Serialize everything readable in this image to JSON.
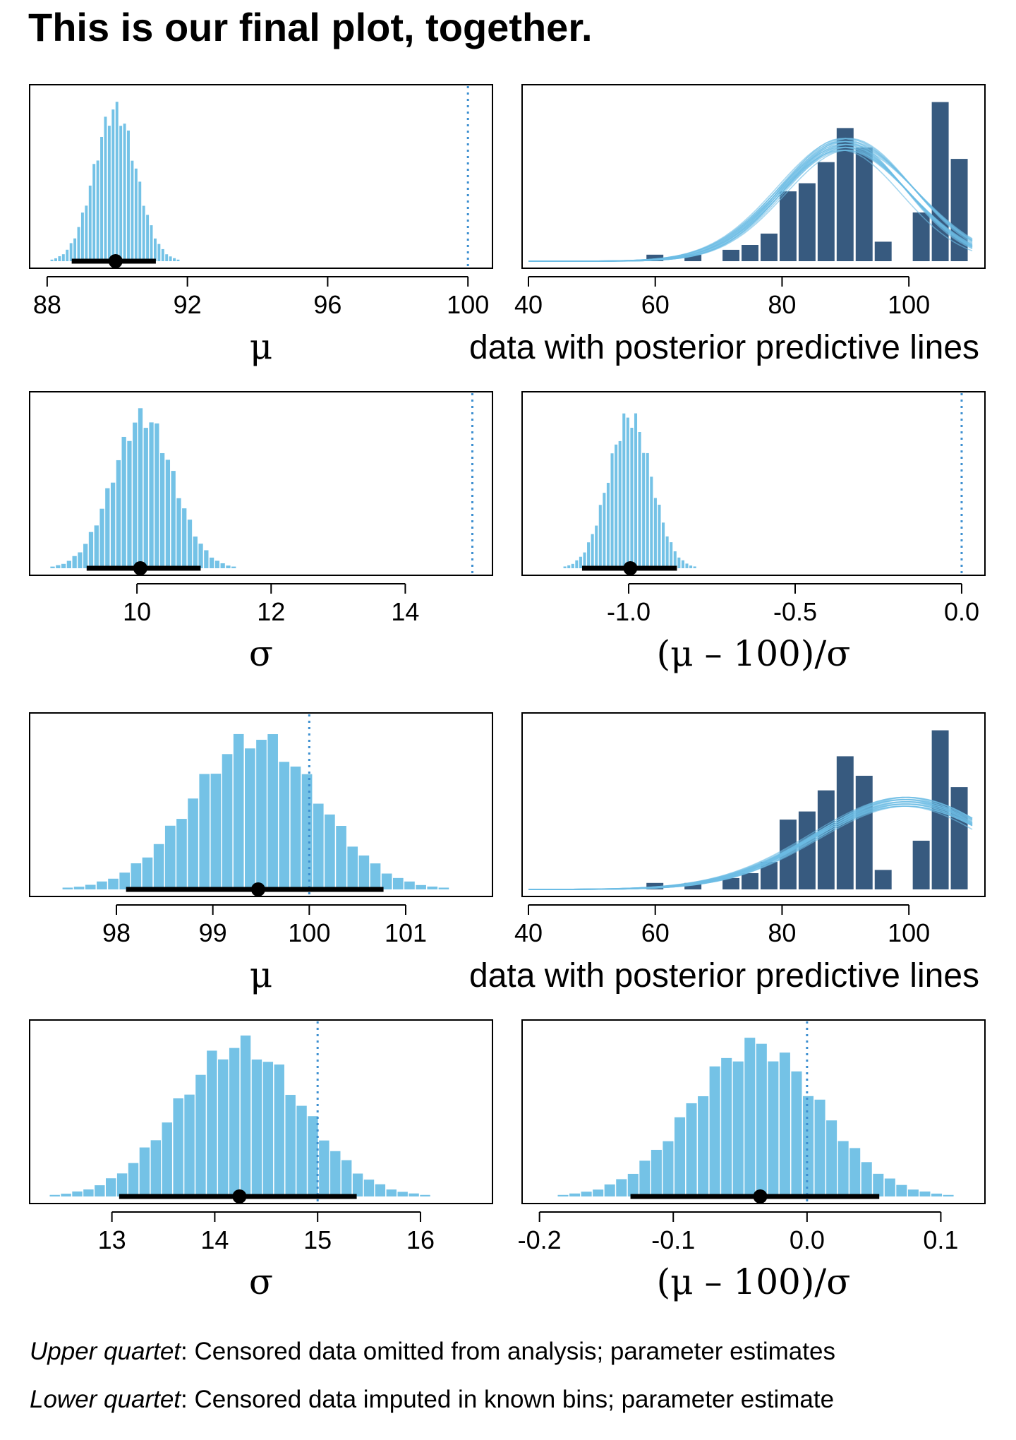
{
  "title": "This is our final plot, together.",
  "captions": {
    "upper": {
      "lead": "Upper quartet",
      "text": ": Censored data omitted from analysis; parameter estimates"
    },
    "lower": {
      "lead": "Lower quartet",
      "text": ": Censored data imputed in known bins; parameter estimate"
    }
  },
  "colors": {
    "posterior": "#74c2e6",
    "data_bars": "#375a7f",
    "pp_lines": "#6cbde4",
    "ref_line": "#3d8fd0",
    "hdi": "#000000"
  },
  "chart_data": [
    {
      "id": "upper-mu",
      "type": "bar",
      "kind": "posterior-histogram",
      "xlabel": "μ",
      "xlim": [
        87.5,
        100.7
      ],
      "ticks": [
        88,
        92,
        96,
        100
      ],
      "ref_line": 100,
      "hdi": [
        88.7,
        91.1
      ],
      "point_estimate": 89.95,
      "distribution": {
        "mean": 89.95,
        "sd": 0.6
      }
    },
    {
      "id": "upper-data",
      "type": "bar",
      "kind": "data-with-ppc",
      "xlabel": "data with posterior predictive lines",
      "xlim": [
        39,
        112
      ],
      "ticks": [
        40,
        60,
        80,
        100
      ],
      "bins": [
        [
          58.5,
          61.5,
          0.04
        ],
        [
          61.5,
          64.5,
          0.0
        ],
        [
          64.5,
          67.5,
          0.04
        ],
        [
          67.5,
          70.5,
          0.0
        ],
        [
          70.5,
          73.5,
          0.07
        ],
        [
          73.5,
          76.5,
          0.1
        ],
        [
          76.5,
          79.5,
          0.17
        ],
        [
          79.5,
          82.5,
          0.43
        ],
        [
          82.5,
          85.5,
          0.48
        ],
        [
          85.5,
          88.5,
          0.61
        ],
        [
          88.5,
          91.5,
          0.82
        ],
        [
          91.5,
          94.5,
          0.7
        ],
        [
          94.5,
          97.5,
          0.12
        ],
        [
          97.5,
          100.5,
          0.0
        ],
        [
          100.5,
          103.5,
          0.3
        ],
        [
          103.5,
          106.5,
          0.98
        ],
        [
          106.5,
          109.5,
          0.63
        ]
      ],
      "ppc": {
        "mu_range": [
          89.3,
          90.7
        ],
        "sd_range": [
          9.5,
          10.8
        ],
        "peak": 0.72,
        "n_lines": 20
      }
    },
    {
      "id": "upper-sigma",
      "type": "bar",
      "kind": "posterior-histogram",
      "xlabel": "σ",
      "xlim": [
        8.4,
        15.3
      ],
      "ticks": [
        10,
        12,
        14
      ],
      "ref_line": 15,
      "hdi": [
        9.25,
        10.95
      ],
      "point_estimate": 10.05,
      "distribution": {
        "mean": 10.1,
        "sd": 0.45
      }
    },
    {
      "id": "upper-effect",
      "type": "bar",
      "kind": "posterior-histogram",
      "xlabel": "(μ – 100)/σ",
      "xlim": [
        -1.32,
        0.07
      ],
      "ticks": [
        -1.0,
        -0.5,
        0.0
      ],
      "tick_labels": [
        "-1.0",
        "-0.5",
        "0.0"
      ],
      "ref_line": 0,
      "hdi": [
        -1.14,
        -0.855
      ],
      "point_estimate": -0.995,
      "distribution": {
        "mean": -0.995,
        "sd": 0.065
      }
    },
    {
      "id": "lower-mu",
      "type": "bar",
      "kind": "posterior-histogram",
      "xlabel": "μ",
      "xlim": [
        97.1,
        101.9
      ],
      "ticks": [
        98,
        99,
        100,
        101
      ],
      "ref_line": 100,
      "hdi": [
        98.1,
        100.77
      ],
      "point_estimate": 99.47,
      "distribution": {
        "mean": 99.45,
        "sd": 0.65
      }
    },
    {
      "id": "lower-data",
      "type": "bar",
      "kind": "data-with-ppc",
      "xlabel": "data with posterior predictive lines",
      "xlim": [
        39,
        112
      ],
      "ticks": [
        40,
        60,
        80,
        100
      ],
      "bins": [
        [
          58.5,
          61.5,
          0.04
        ],
        [
          61.5,
          64.5,
          0.0
        ],
        [
          64.5,
          67.5,
          0.04
        ],
        [
          67.5,
          70.5,
          0.0
        ],
        [
          70.5,
          73.5,
          0.07
        ],
        [
          73.5,
          76.5,
          0.1
        ],
        [
          76.5,
          79.5,
          0.17
        ],
        [
          79.5,
          82.5,
          0.43
        ],
        [
          82.5,
          85.5,
          0.48
        ],
        [
          85.5,
          88.5,
          0.61
        ],
        [
          88.5,
          91.5,
          0.82
        ],
        [
          91.5,
          94.5,
          0.7
        ],
        [
          94.5,
          97.5,
          0.12
        ],
        [
          97.5,
          100.5,
          0.0
        ],
        [
          100.5,
          103.5,
          0.3
        ],
        [
          103.5,
          106.5,
          0.98
        ],
        [
          106.5,
          109.5,
          0.63
        ]
      ],
      "ppc": {
        "mu_range": [
          99.0,
          100.0
        ],
        "sd_range": [
          13.6,
          15.0
        ],
        "peak": 0.54,
        "n_lines": 20
      }
    },
    {
      "id": "lower-sigma",
      "type": "bar",
      "kind": "posterior-histogram",
      "xlabel": "σ",
      "xlim": [
        12.2,
        16.7
      ],
      "ticks": [
        13,
        14,
        15,
        16
      ],
      "ref_line": 15,
      "hdi": [
        13.07,
        15.38
      ],
      "point_estimate": 14.24,
      "distribution": {
        "mean": 14.25,
        "sd": 0.6
      }
    },
    {
      "id": "lower-effect",
      "type": "bar",
      "kind": "posterior-histogram",
      "xlabel": "(μ – 100)/σ",
      "xlim": [
        -0.213,
        0.133
      ],
      "ticks": [
        -0.2,
        -0.1,
        0.0,
        0.1
      ],
      "tick_labels": [
        "-0.2",
        "-0.1",
        "0.0",
        "0.1"
      ],
      "ref_line": 0,
      "hdi": [
        -0.132,
        0.054
      ],
      "point_estimate": -0.035,
      "distribution": {
        "mean": -0.038,
        "sd": 0.048
      }
    }
  ]
}
